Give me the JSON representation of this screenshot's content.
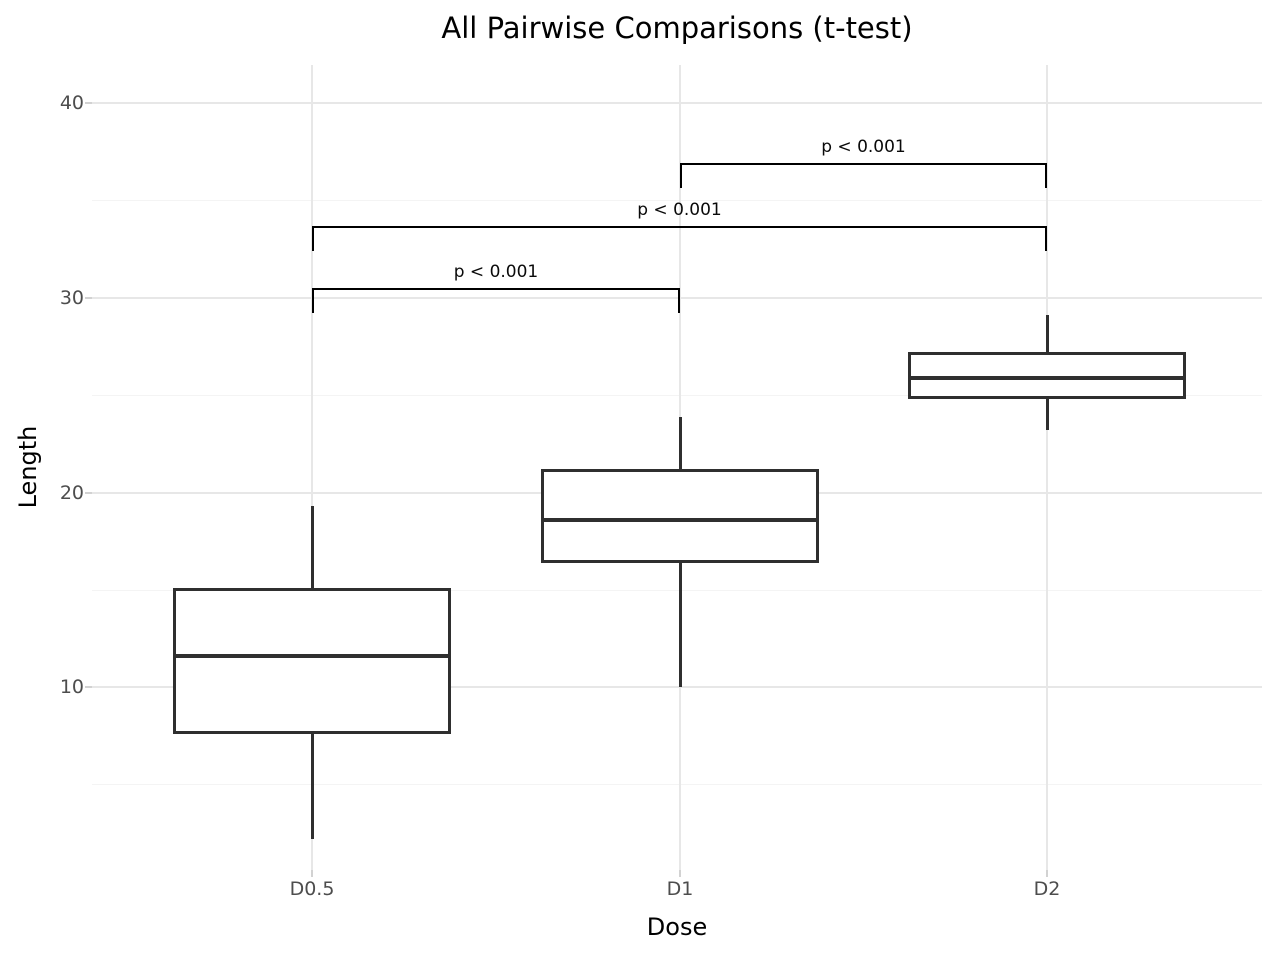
{
  "title": "All Pairwise Comparisons (t-test)",
  "chart_data": {
    "type": "boxplot",
    "title": "All Pairwise Comparisons (t-test)",
    "xlabel": "Dose",
    "ylabel": "Length",
    "categories": [
      "D0.5",
      "D1",
      "D2"
    ],
    "series": [
      {
        "name": "D0.5",
        "whisker_low": 2.2,
        "q1": 7.6,
        "median": 11.6,
        "q3": 15.1,
        "whisker_high": 19.3
      },
      {
        "name": "D1",
        "whisker_low": 10.0,
        "q1": 16.4,
        "median": 18.6,
        "q3": 21.2,
        "whisker_high": 23.9
      },
      {
        "name": "D2",
        "whisker_low": 23.2,
        "q1": 24.8,
        "median": 25.9,
        "q3": 27.2,
        "whisker_high": 29.1
      }
    ],
    "y_major_ticks": [
      40,
      30,
      20,
      10
    ],
    "y_minor_ticks": [
      35,
      25,
      15,
      5
    ],
    "ylim": [
      0.6,
      42
    ],
    "grid": true,
    "legend": false,
    "annotations": [
      {
        "group_a": "D0.5",
        "group_b": "D1",
        "label": "p < 0.001",
        "y": 30.5
      },
      {
        "group_a": "D0.5",
        "group_b": "D2",
        "label": "p < 0.001",
        "y": 33.7
      },
      {
        "group_a": "D1",
        "group_b": "D2",
        "label": "p < 0.001",
        "y": 36.9
      }
    ]
  },
  "colors": {
    "background": "#ffffff",
    "box_stroke": "#2f2f2f",
    "box_fill": "#ffffff",
    "median_stroke": "#2f2f2f",
    "bracket": "#000000",
    "grid_major": "#e7e7e7",
    "grid_minor": "#f4f4f4",
    "tick_mark": "#d2d2d2",
    "tick_label": "#4d4d4d",
    "text": "#000000"
  }
}
